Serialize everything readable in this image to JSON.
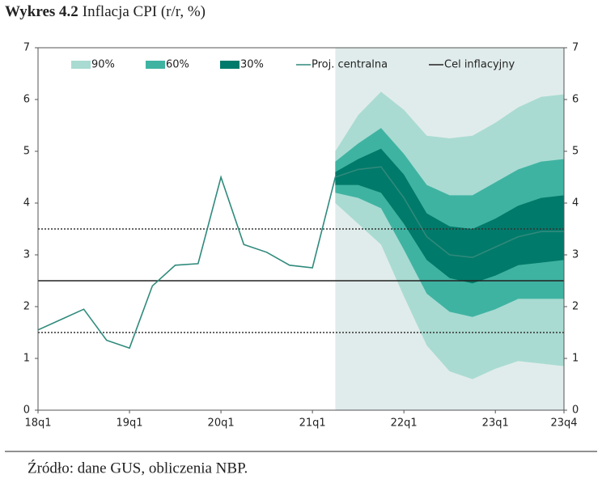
{
  "chart_data": {
    "type": "fan",
    "title_bold": "Wykres 4.2",
    "title": "Inflacja CPI (r/r, %)",
    "source": "Źródło: dane GUS, obliczenia NBP.",
    "categories": [
      "18q1",
      null,
      null,
      null,
      "19q1",
      null,
      null,
      null,
      "20q1",
      null,
      null,
      null,
      "21q1",
      null,
      null,
      null,
      "22q1",
      null,
      null,
      null,
      "23q1",
      null,
      null,
      "23q4"
    ],
    "ylim": [
      0,
      7
    ],
    "yticks": [
      0,
      1,
      2,
      3,
      4,
      5,
      6,
      7
    ],
    "series": [
      {
        "name": "Proj. centralna",
        "color": "#2f8a7c",
        "values": [
          1.55,
          1.75,
          1.95,
          1.35,
          1.2,
          2.4,
          2.8,
          2.83,
          4.5,
          3.2,
          3.05,
          2.8,
          2.75,
          4.5,
          4.65,
          4.7,
          4.1,
          3.35,
          3.0,
          2.95,
          3.15,
          3.35,
          3.45,
          3.45
        ]
      }
    ],
    "fan": [
      {
        "name": "90%",
        "color": "#a9dbd2",
        "upper": [
          null,
          null,
          null,
          null,
          null,
          null,
          null,
          null,
          null,
          null,
          null,
          null,
          null,
          5.0,
          5.7,
          6.15,
          5.8,
          5.3,
          5.25,
          5.3,
          5.55,
          5.85,
          6.05,
          6.1
        ],
        "lower": [
          null,
          null,
          null,
          null,
          null,
          null,
          null,
          null,
          null,
          null,
          null,
          null,
          null,
          4.0,
          3.6,
          3.2,
          2.2,
          1.25,
          0.75,
          0.6,
          0.8,
          0.95,
          0.9,
          0.85
        ]
      },
      {
        "name": "60%",
        "color": "#3fb3a2",
        "upper": [
          null,
          null,
          null,
          null,
          null,
          null,
          null,
          null,
          null,
          null,
          null,
          null,
          null,
          4.8,
          5.15,
          5.45,
          4.95,
          4.35,
          4.15,
          4.15,
          4.4,
          4.65,
          4.8,
          4.85
        ],
        "lower": [
          null,
          null,
          null,
          null,
          null,
          null,
          null,
          null,
          null,
          null,
          null,
          null,
          null,
          4.2,
          4.1,
          3.9,
          3.1,
          2.25,
          1.9,
          1.8,
          1.95,
          2.15,
          2.15,
          2.15
        ]
      },
      {
        "name": "30%",
        "color": "#007a6a",
        "upper": [
          null,
          null,
          null,
          null,
          null,
          null,
          null,
          null,
          null,
          null,
          null,
          null,
          null,
          4.6,
          4.85,
          5.05,
          4.55,
          3.8,
          3.55,
          3.5,
          3.7,
          3.95,
          4.1,
          4.15
        ],
        "lower": [
          null,
          null,
          null,
          null,
          null,
          null,
          null,
          null,
          null,
          null,
          null,
          null,
          null,
          4.35,
          4.35,
          4.2,
          3.6,
          2.9,
          2.55,
          2.45,
          2.6,
          2.8,
          2.85,
          2.9
        ]
      }
    ],
    "target": {
      "name": "Cel inflacyjny",
      "value": 2.5,
      "color": "#222222"
    },
    "tolerance": [
      1.5,
      3.5
    ],
    "forecast_shade_color": "#e0eceb"
  }
}
